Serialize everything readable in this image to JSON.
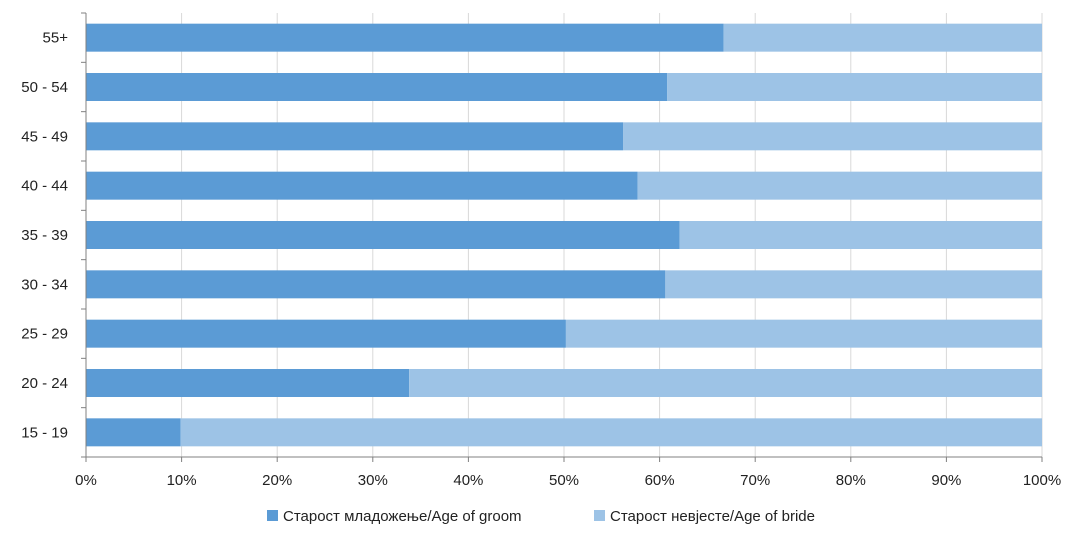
{
  "chart_data": {
    "type": "bar",
    "orientation": "horizontal",
    "stacked": "percent",
    "categories": [
      "55+",
      "50 - 54",
      "45 - 49",
      "40 - 44",
      "35 - 39",
      "30 - 34",
      "25 - 29",
      "20 - 24",
      "15 - 19"
    ],
    "series": [
      {
        "name": "Старост младожење/Age of groom",
        "values": [
          66.7,
          60.8,
          56.2,
          57.7,
          62.1,
          60.6,
          50.2,
          33.8,
          9.9
        ],
        "color": "#5b9bd5"
      },
      {
        "name": "Старост невјесте/Age of bride",
        "values": [
          33.3,
          39.2,
          43.8,
          42.3,
          37.9,
          39.4,
          49.8,
          66.2,
          90.1
        ],
        "color": "#9dc3e6"
      }
    ],
    "x_ticks": [
      "0%",
      "10%",
      "20%",
      "30%",
      "40%",
      "50%",
      "60%",
      "70%",
      "80%",
      "90%",
      "100%"
    ],
    "xlim": [
      0,
      100
    ],
    "grid": "vertical",
    "legend_position": "bottom",
    "title": "",
    "xlabel": "",
    "ylabel": ""
  }
}
